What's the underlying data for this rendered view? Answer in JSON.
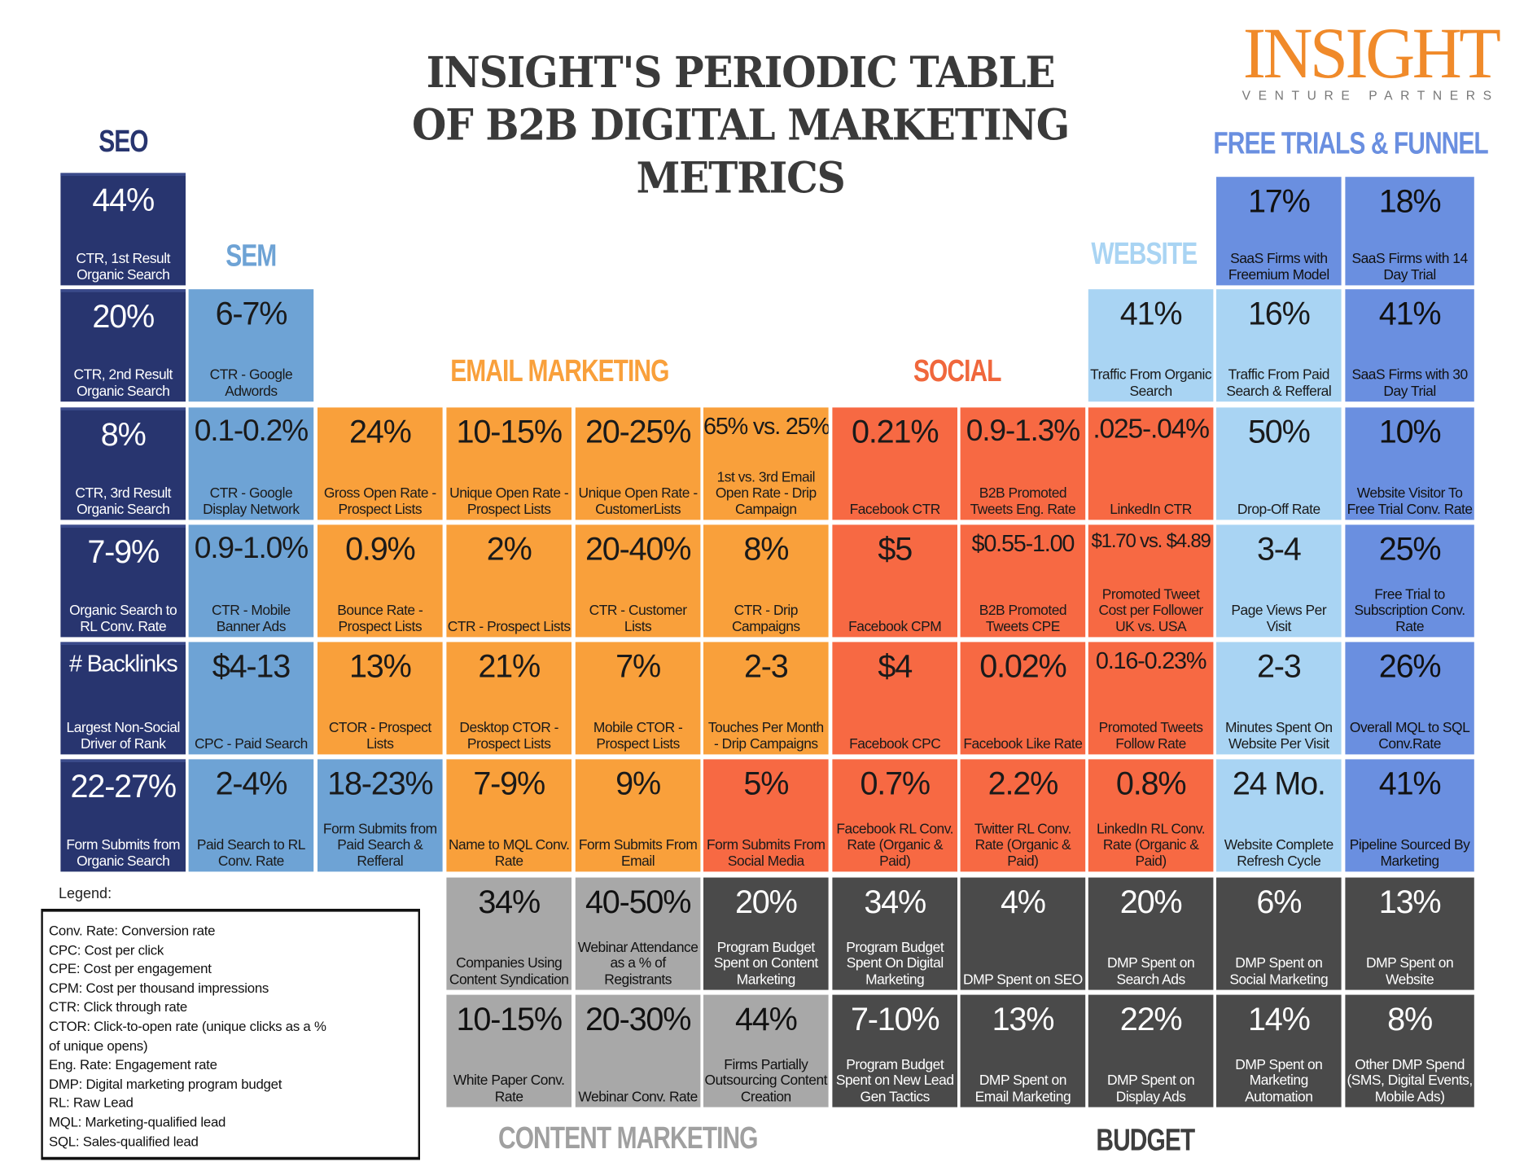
{
  "title": [
    "INSIGHT'S PERIODIC TABLE",
    "OF B2B DIGITAL MARKETING",
    "METRICS"
  ],
  "logo": {
    "main": "INSIGHT",
    "sub": "VENTURE PARTNERS",
    "color": "#f08a2a"
  },
  "sections": {
    "seo": {
      "label": "SEO",
      "color": "#28356f"
    },
    "sem": {
      "label": "SEM",
      "color": "#6ea3d5"
    },
    "email": {
      "label": "EMAIL MARKETING",
      "color": "#f9a03b"
    },
    "social": {
      "label": "SOCIAL",
      "color": "#f0673c"
    },
    "website": {
      "label": "WEBSITE",
      "color": "#a9d4f3"
    },
    "trials": {
      "label": "FREE TRIALS & FUNNEL",
      "color": "#6a8fe0"
    },
    "content": {
      "label": "CONTENT MARKETING",
      "color": "#a0a0a0"
    },
    "budget": {
      "label": "BUDGET",
      "color": "#3e3e3e"
    }
  },
  "tiles": [
    {
      "cat": "seo",
      "value": "44%",
      "label": "CTR, 1st Result Organic Search"
    },
    {
      "cat": "seo",
      "value": "20%",
      "label": "CTR, 2nd Result Organic Search"
    },
    {
      "cat": "seo",
      "value": "8%",
      "label": "CTR, 3rd Result Organic Search"
    },
    {
      "cat": "seo",
      "value": "7-9%",
      "label": "Organic Search to RL Conv. Rate"
    },
    {
      "cat": "seo",
      "value": "# Backlinks",
      "label": "Largest Non-Social Driver of Rank"
    },
    {
      "cat": "seo",
      "value": "22-27%",
      "label": "Form Submits from Organic Search"
    },
    {
      "cat": "sem",
      "value": "6-7%",
      "label": "CTR - Google Adwords"
    },
    {
      "cat": "sem",
      "value": "0.1-0.2%",
      "label": "CTR - Google Display Network"
    },
    {
      "cat": "sem",
      "value": "0.9-1.0%",
      "label": "CTR - Mobile Banner Ads"
    },
    {
      "cat": "sem",
      "value": "$4-13",
      "label": "CPC - Paid Search"
    },
    {
      "cat": "sem",
      "value": "2-4%",
      "label": "Paid Search to RL Conv. Rate"
    },
    {
      "cat": "email",
      "value": "24%",
      "label": "Gross Open Rate - Prospect Lists"
    },
    {
      "cat": "email",
      "value": "0.9%",
      "label": "Bounce Rate - Prospect Lists"
    },
    {
      "cat": "email",
      "value": "13%",
      "label": "CTOR - Prospect Lists"
    },
    {
      "cat": "sem",
      "value": "18-23%",
      "label": "Form Submits from Paid Search & Refferal"
    },
    {
      "cat": "email",
      "value": "10-15%",
      "label": "Unique Open Rate - Prospect Lists"
    },
    {
      "cat": "email",
      "value": "2%",
      "label": "CTR - Prospect Lists"
    },
    {
      "cat": "email",
      "value": "21%",
      "label": "Desktop CTOR - Prospect Lists"
    },
    {
      "cat": "email",
      "value": "7-9%",
      "label": "Name to MQL Conv. Rate"
    },
    {
      "cat": "email",
      "value": "20-25%",
      "label": "Unique Open Rate - CustomerLists"
    },
    {
      "cat": "email",
      "value": "20-40%",
      "label": "CTR - Customer Lists"
    },
    {
      "cat": "email",
      "value": "7%",
      "label": "Mobile CTOR - Prospect Lists"
    },
    {
      "cat": "email",
      "value": "9%",
      "label": "Form Submits From Email"
    },
    {
      "cat": "email",
      "value": "65% vs. 25%",
      "label": "1st vs. 3rd Email Open Rate - Drip Campaign"
    },
    {
      "cat": "email",
      "value": "8%",
      "label": "CTR - Drip Campaigns"
    },
    {
      "cat": "email",
      "value": "2-3",
      "label": "Touches Per Month - Drip Campaigns"
    },
    {
      "cat": "social",
      "value": "5%",
      "label": "Form Submits From Social Media"
    },
    {
      "cat": "social",
      "value": "0.21%",
      "label": "Facebook CTR"
    },
    {
      "cat": "social",
      "value": "$5",
      "label": "Facebook CPM"
    },
    {
      "cat": "social",
      "value": "$4",
      "label": "Facebook CPC"
    },
    {
      "cat": "social",
      "value": "0.7%",
      "label": "Facebook RL Conv. Rate (Organic & Paid)"
    },
    {
      "cat": "social",
      "value": "0.9-1.3%",
      "label": "B2B Promoted Tweets Eng. Rate"
    },
    {
      "cat": "social",
      "value": "$0.55-1.00",
      "label": "B2B Promoted Tweets CPE"
    },
    {
      "cat": "social",
      "value": "0.02%",
      "label": "Facebook Like Rate"
    },
    {
      "cat": "social",
      "value": "2.2%",
      "label": "Twitter RL Conv. Rate (Organic & Paid)"
    },
    {
      "cat": "website",
      "value": "41%",
      "label": "Traffic From Organic Search"
    },
    {
      "cat": "social",
      "value": ".025-.04%",
      "label": "LinkedIn CTR"
    },
    {
      "cat": "social",
      "value": "$1.70 vs. $4.89",
      "label": "Promoted Tweet Cost per Follower UK vs. USA"
    },
    {
      "cat": "social",
      "value": "0.16-0.23%",
      "label": "Promoted Tweets Follow Rate"
    },
    {
      "cat": "social",
      "value": "0.8%",
      "label": "LinkedIn RL Conv. Rate (Organic & Paid)"
    },
    {
      "cat": "trials",
      "value": "17%",
      "label": "SaaS Firms with Freemium Model"
    },
    {
      "cat": "website",
      "value": "16%",
      "label": "Traffic From Paid Search & Refferal"
    },
    {
      "cat": "website",
      "value": "50%",
      "label": "Drop-Off Rate"
    },
    {
      "cat": "website",
      "value": "3-4",
      "label": "Page Views Per Visit"
    },
    {
      "cat": "website",
      "value": "2-3",
      "label": "Minutes Spent On Website Per Visit"
    },
    {
      "cat": "website",
      "value": "24 Mo.",
      "label": "Website Complete Refresh Cycle"
    },
    {
      "cat": "trials",
      "value": "18%",
      "label": "SaaS Firms with 14 Day Trial"
    },
    {
      "cat": "trials",
      "value": "41%",
      "label": "SaaS Firms with 30 Day Trial"
    },
    {
      "cat": "trials",
      "value": "10%",
      "label": "Website Visitor To Free Trial Conv. Rate"
    },
    {
      "cat": "trials",
      "value": "25%",
      "label": "Free Trial to Subscription Conv. Rate"
    },
    {
      "cat": "trials",
      "value": "26%",
      "label": "Overall MQL to SQL Conv.Rate"
    },
    {
      "cat": "trials",
      "value": "41%",
      "label": "Pipeline Sourced By Marketing"
    },
    {
      "cat": "content",
      "value": "34%",
      "label": "Companies Using Content Syndication"
    },
    {
      "cat": "content",
      "value": "40-50%",
      "label": "Webinar Attendance as a % of Registrants"
    },
    {
      "cat": "budget",
      "value": "20%",
      "label": "Program Budget Spent on Content Marketing"
    },
    {
      "cat": "budget",
      "value": "34%",
      "label": "Program Budget Spent On Digital Marketing"
    },
    {
      "cat": "budget",
      "value": "4%",
      "label": "DMP Spent on SEO"
    },
    {
      "cat": "budget",
      "value": "20%",
      "label": "DMP Spent on Search Ads"
    },
    {
      "cat": "budget",
      "value": "6%",
      "label": "DMP Spent on Social Marketing"
    },
    {
      "cat": "budget",
      "value": "13%",
      "label": "DMP Spent on Website"
    },
    {
      "cat": "content",
      "value": "10-15%",
      "label": "White Paper Conv. Rate"
    },
    {
      "cat": "content",
      "value": "20-30%",
      "label": "Webinar Conv. Rate"
    },
    {
      "cat": "content",
      "value": "44%",
      "label": "Firms Partially Outsourcing Content Creation"
    },
    {
      "cat": "budget",
      "value": "7-10%",
      "label": "Program Budget Spent on New Lead Gen Tactics"
    },
    {
      "cat": "budget",
      "value": "13%",
      "label": "DMP Spent on Email Marketing"
    },
    {
      "cat": "budget",
      "value": "22%",
      "label": "DMP Spent on Display Ads"
    },
    {
      "cat": "budget",
      "value": "14%",
      "label": "DMP Spent on Marketing Automation"
    },
    {
      "cat": "budget",
      "value": "8%",
      "label": "Other DMP Spend (SMS, Digital Events, Mobile Ads)"
    }
  ],
  "legend": {
    "title": "Legend:",
    "items": [
      "Conv. Rate: Conversion rate",
      "CPC: Cost per click",
      "CPE: Cost per engagement",
      "CPM: Cost per thousand impressions",
      "CTR: Click through rate",
      "CTOR: Click-to-open rate (unique clicks as a %",
      "of unique opens)",
      "Eng. Rate: Engagement rate",
      "DMP: Digital marketing program budget",
      "RL: Raw Lead",
      "MQL: Marketing-qualified lead",
      "SQL: Sales-qualified lead"
    ]
  }
}
